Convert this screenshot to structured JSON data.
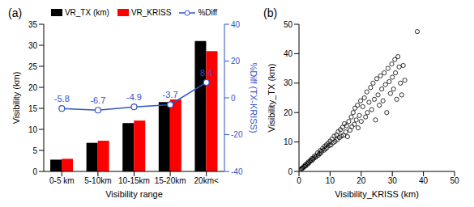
{
  "chart_data": [
    {
      "type": "bar",
      "title": "(a)",
      "categories": [
        "0-5 km",
        "5-10km",
        "10-15km",
        "15-20km",
        "20km<"
      ],
      "x_label": "Visibility range",
      "y_label": "Visibility (km)",
      "y2_label": "%Diff (TX-KRISS)",
      "series": [
        {
          "name": "VR_TX (km)",
          "color": "#000000",
          "values": [
            2.8,
            6.8,
            11.5,
            16.5,
            31.0
          ]
        },
        {
          "name": "VR_KRISS",
          "color": "#ff0000",
          "values": [
            3.0,
            7.3,
            12.1,
            17.1,
            28.6
          ]
        },
        {
          "name": "%Diff",
          "type": "line",
          "axis": "y2",
          "color": "#2f55c8",
          "marker": "open_circle",
          "data_labels": true,
          "values": [
            -5.8,
            -6.7,
            -4.9,
            -3.7,
            8.4
          ]
        }
      ],
      "ylim": [
        0,
        35
      ],
      "yticks": [
        0,
        5,
        10,
        15,
        20,
        25,
        30,
        35
      ],
      "y2lim": [
        -40,
        40
      ],
      "y2ticks": [
        -40,
        -20,
        0,
        20,
        40
      ],
      "legend": "top"
    },
    {
      "type": "scatter",
      "title": "(b)",
      "x_label": "Visibility_KRISS (km)",
      "y_label": "Visibility_TX (km)",
      "color": "#000000",
      "marker": "open_circle",
      "xlim": [
        0,
        50
      ],
      "xticks": [
        0,
        10,
        20,
        30,
        40,
        50
      ],
      "ylim": [
        0,
        50
      ],
      "yticks": [
        0,
        10,
        20,
        30,
        40,
        50
      ],
      "x": [
        0.5,
        0.8,
        1.0,
        1.3,
        1.5,
        1.8,
        2.0,
        2.2,
        2.5,
        2.8,
        3.0,
        3.2,
        3.5,
        3.8,
        4.0,
        4.2,
        4.5,
        4.8,
        5.0,
        5.3,
        5.6,
        6.0,
        6.2,
        6.5,
        6.8,
        7.0,
        7.3,
        7.6,
        8.0,
        8.2,
        8.5,
        8.8,
        9.0,
        9.4,
        9.7,
        10.0,
        10.3,
        10.6,
        11.0,
        11.3,
        11.6,
        12.0,
        12.3,
        12.6,
        13.0,
        13.3,
        13.6,
        14.0,
        14.3,
        14.6,
        15.0,
        15.3,
        15.6,
        16.0,
        16.4,
        16.8,
        17.0,
        17.4,
        17.8,
        18.0,
        18.4,
        18.8,
        19.0,
        19.4,
        19.8,
        20.0,
        20.5,
        21.0,
        21.4,
        21.8,
        22.0,
        22.5,
        23.0,
        23.4,
        23.8,
        24.2,
        24.6,
        25.0,
        25.4,
        25.8,
        26.2,
        26.6,
        27.0,
        27.4,
        27.8,
        28.2,
        28.6,
        29.0,
        29.4,
        29.8,
        30.0,
        30.4,
        30.8,
        31.0,
        31.4,
        31.8,
        32.2,
        32.6,
        33.0,
        33.5,
        34.0,
        38.0
      ],
      "values": [
        0.6,
        0.9,
        1.1,
        1.2,
        1.6,
        1.7,
        2.2,
        1.9,
        2.6,
        2.5,
        3.2,
        2.9,
        3.4,
        3.9,
        3.6,
        4.4,
        4.1,
        4.6,
        5.3,
        4.8,
        5.2,
        6.3,
        5.5,
        6.0,
        7.1,
        6.2,
        6.9,
        7.8,
        7.2,
        8.5,
        7.6,
        9.0,
        8.1,
        9.6,
        8.8,
        10.3,
        9.0,
        11.0,
        9.8,
        12.0,
        10.2,
        12.4,
        10.8,
        13.5,
        11.5,
        14.2,
        12.0,
        15.0,
        12.3,
        16.2,
        13.4,
        15.5,
        11.8,
        17.0,
        14.0,
        18.5,
        15.2,
        20.0,
        16.0,
        21.5,
        17.5,
        22.5,
        14.8,
        19.0,
        24.0,
        17.0,
        22.0,
        25.0,
        18.5,
        27.0,
        20.0,
        23.5,
        28.5,
        21.0,
        30.0,
        24.5,
        17.5,
        31.5,
        26.0,
        22.5,
        32.5,
        28.0,
        24.0,
        33.5,
        29.5,
        20.0,
        35.0,
        30.5,
        26.5,
        36.5,
        32.0,
        28.0,
        38.0,
        33.5,
        24.5,
        39.0,
        35.5,
        30.0,
        26.0,
        36.0,
        31.0,
        47.5
      ]
    }
  ]
}
